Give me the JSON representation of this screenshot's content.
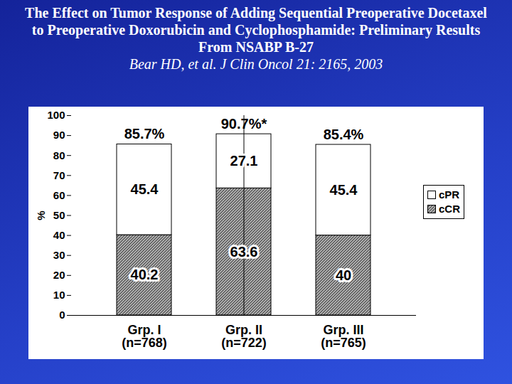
{
  "chart_data": {
    "type": "bar",
    "title": "The Effect on Tumor Response of Adding Sequential Preoperative Docetaxel to Preoperative Doxorubicin and Cyclophosphamide: Preliminary Results From NSABP B-27",
    "subtitle": "Bear HD, et al. J Clin Oncol 21: 2165, 2003",
    "categories": [
      "Grp. I\n(n=768)",
      "Grp. II\n(n=722)",
      "Grp. III\n(n=765)"
    ],
    "series": [
      {
        "name": "cCR",
        "color": "#a8a8a8",
        "values": [
          40.2,
          63.6,
          40
        ]
      },
      {
        "name": "cPR",
        "color": "#ffffff",
        "values": [
          45.4,
          27.1,
          45.4
        ]
      }
    ],
    "totals": [
      85.7,
      90.7,
      85.4
    ],
    "total_labels": [
      "85.7%",
      "90.7%*",
      "85.4%"
    ],
    "y_label": "%",
    "ylim": [
      0,
      100
    ],
    "yticks": [
      0,
      10,
      20,
      30,
      40,
      50,
      60,
      70,
      80,
      90,
      100
    ],
    "stacked": true,
    "data_labels": true,
    "legend": "right",
    "grid": false
  }
}
